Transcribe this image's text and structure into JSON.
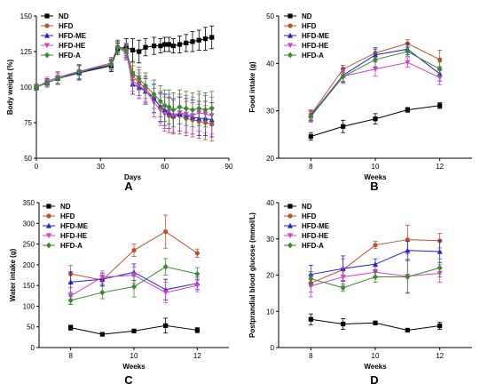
{
  "chart_data": [
    {
      "panel": "A",
      "type": "line",
      "xlabel": "Days",
      "ylabel": "Body weight (%)",
      "xlim": [
        0,
        90
      ],
      "ylim": [
        50,
        150
      ],
      "xticks": [
        0,
        30,
        60,
        90
      ],
      "yticks": [
        50,
        75,
        100,
        125,
        150
      ],
      "legend": "top-left",
      "x": [
        0,
        5,
        10,
        20,
        35,
        38,
        42,
        45,
        48,
        51,
        55,
        58,
        60,
        62,
        64,
        67,
        70,
        73,
        76,
        79,
        82
      ],
      "series": [
        {
          "name": "ND",
          "color": "#000000",
          "marker": "square",
          "values": [
            100,
            103,
            106,
            110,
            115,
            127,
            128,
            126,
            125,
            128,
            129,
            129,
            130,
            130,
            129,
            130,
            131,
            132,
            133,
            134,
            135
          ],
          "errors": [
            2,
            3,
            4,
            5,
            4,
            4,
            6,
            8,
            8,
            6,
            6,
            5,
            5,
            5,
            5,
            6,
            6,
            7,
            7,
            8,
            8
          ]
        },
        {
          "name": "HFD",
          "color": "#c0502c",
          "marker": "circle",
          "values": [
            100,
            103,
            106,
            110,
            116,
            128,
            126,
            108,
            103,
            99,
            92,
            86,
            83,
            80,
            79,
            80,
            78,
            77,
            76,
            75,
            74
          ],
          "errors": [
            2,
            3,
            4,
            5,
            4,
            4,
            5,
            7,
            9,
            9,
            10,
            11,
            12,
            12,
            12,
            13,
            12,
            12,
            12,
            12,
            12
          ]
        },
        {
          "name": "HFD-ME",
          "color": "#2020d0",
          "marker": "triangle-up",
          "values": [
            100,
            103,
            106,
            110,
            116,
            129,
            125,
            102,
            100,
            97,
            92,
            86,
            84,
            82,
            80,
            81,
            80,
            79,
            78,
            78,
            77
          ],
          "errors": [
            2,
            3,
            4,
            5,
            4,
            4,
            5,
            7,
            8,
            9,
            10,
            10,
            11,
            11,
            12,
            12,
            12,
            12,
            12,
            12,
            12
          ]
        },
        {
          "name": "HFD-HE",
          "color": "#d040d0",
          "marker": "triangle-down",
          "values": [
            100,
            104,
            107,
            111,
            117,
            128,
            124,
            104,
            101,
            98,
            89,
            84,
            81,
            83,
            80,
            82,
            81,
            80,
            82,
            81,
            80
          ],
          "errors": [
            2,
            3,
            4,
            5,
            4,
            4,
            5,
            7,
            9,
            9,
            10,
            11,
            12,
            12,
            12,
            13,
            13,
            13,
            13,
            13,
            13
          ]
        },
        {
          "name": "HFD-A",
          "color": "#3a8a2e",
          "marker": "diamond",
          "values": [
            100,
            103,
            106,
            111,
            116,
            128,
            126,
            110,
            106,
            101,
            95,
            90,
            87,
            86,
            84,
            86,
            85,
            84,
            85,
            84,
            85
          ],
          "errors": [
            2,
            3,
            4,
            5,
            4,
            4,
            5,
            7,
            8,
            9,
            10,
            11,
            11,
            12,
            12,
            12,
            12,
            12,
            12,
            12,
            12
          ]
        }
      ]
    },
    {
      "panel": "B",
      "type": "line",
      "xlabel": "Weeks",
      "ylabel": "Food intake (g)",
      "xlim": [
        7,
        13
      ],
      "ylim": [
        20,
        50
      ],
      "xticks": [
        8,
        10,
        12
      ],
      "yticks": [
        20,
        30,
        40,
        50
      ],
      "legend": "top-left",
      "x": [
        8,
        9,
        10,
        11,
        12
      ],
      "series": [
        {
          "name": "ND",
          "color": "#000000",
          "marker": "square",
          "values": [
            24.6,
            26.7,
            28.3,
            30.2,
            31.1
          ],
          "errors": [
            0.8,
            1.3,
            1.1,
            0.5,
            0.6
          ]
        },
        {
          "name": "HFD",
          "color": "#c0502c",
          "marker": "circle",
          "values": [
            29.2,
            38.8,
            42.2,
            44.2,
            40.8
          ],
          "errors": [
            1.0,
            0.8,
            0.8,
            0.8,
            2.0
          ]
        },
        {
          "name": "HFD-ME",
          "color": "#2020d0",
          "marker": "triangle-up",
          "values": [
            29.0,
            37.5,
            41.8,
            43.0,
            37.8
          ],
          "errors": [
            1.0,
            1.5,
            1.5,
            1.2,
            1.5
          ]
        },
        {
          "name": "HFD-HE",
          "color": "#d040d0",
          "marker": "triangle-down",
          "values": [
            28.8,
            37.3,
            38.8,
            40.2,
            37.0
          ],
          "errors": [
            1.2,
            1.5,
            1.5,
            1.0,
            1.5
          ]
        },
        {
          "name": "HFD-A",
          "color": "#3a8a2e",
          "marker": "diamond",
          "values": [
            28.8,
            37.2,
            40.8,
            42.5,
            38.8
          ],
          "errors": [
            1.0,
            1.0,
            1.5,
            1.0,
            1.5
          ]
        }
      ]
    },
    {
      "panel": "C",
      "type": "line",
      "xlabel": "Weeks",
      "ylabel": "Water intake (g)",
      "xlim": [
        7,
        13
      ],
      "ylim": [
        0,
        350
      ],
      "xticks": [
        8,
        10,
        12
      ],
      "yticks": [
        0,
        50,
        100,
        150,
        200,
        250,
        300,
        350
      ],
      "legend": "top-left",
      "x": [
        8,
        9,
        10,
        11,
        12
      ],
      "series": [
        {
          "name": "ND",
          "color": "#000000",
          "marker": "square",
          "values": [
            48,
            32,
            40,
            53,
            42
          ],
          "errors": [
            6,
            3,
            4,
            18,
            6
          ]
        },
        {
          "name": "HFD",
          "color": "#c0502c",
          "marker": "circle",
          "values": [
            178,
            163,
            235,
            280,
            228
          ],
          "errors": [
            20,
            12,
            15,
            40,
            10
          ]
        },
        {
          "name": "HFD-ME",
          "color": "#2020d0",
          "marker": "triangle-up",
          "values": [
            158,
            165,
            182,
            140,
            155
          ],
          "errors": [
            25,
            15,
            20,
            25,
            15
          ]
        },
        {
          "name": "HFD-HE",
          "color": "#d040d0",
          "marker": "triangle-down",
          "values": [
            125,
            170,
            175,
            133,
            150
          ],
          "errors": [
            20,
            15,
            20,
            25,
            15
          ]
        },
        {
          "name": "HFD-A",
          "color": "#3a8a2e",
          "marker": "diamond",
          "values": [
            114,
            133,
            147,
            195,
            178
          ],
          "errors": [
            10,
            15,
            25,
            20,
            15
          ]
        }
      ]
    },
    {
      "panel": "D",
      "type": "line",
      "xlabel": "Weeks",
      "ylabel": "Postprandial blood glucose (mmol/L)",
      "xlim": [
        7,
        13
      ],
      "ylim": [
        0,
        40
      ],
      "xticks": [
        8,
        10,
        12
      ],
      "yticks": [
        0,
        10,
        20,
        30,
        40
      ],
      "legend": "top-left",
      "x": [
        8,
        9,
        10,
        11,
        12
      ],
      "series": [
        {
          "name": "ND",
          "color": "#000000",
          "marker": "square",
          "values": [
            7.8,
            6.5,
            6.8,
            4.8,
            6.0
          ],
          "errors": [
            1.5,
            1.5,
            0.5,
            0.5,
            1.0
          ]
        },
        {
          "name": "HFD",
          "color": "#c0502c",
          "marker": "circle",
          "values": [
            17.8,
            21.5,
            28.3,
            29.8,
            29.5
          ],
          "errors": [
            2.5,
            3.0,
            1.0,
            4.0,
            2.0
          ]
        },
        {
          "name": "HFD-ME",
          "color": "#2020d0",
          "marker": "triangle-up",
          "values": [
            20.2,
            21.8,
            23.0,
            26.8,
            26.5
          ],
          "errors": [
            2.5,
            3.5,
            1.5,
            2.5,
            3.0
          ]
        },
        {
          "name": "HFD-HE",
          "color": "#d040d0",
          "marker": "triangle-down",
          "values": [
            17.0,
            19.5,
            20.8,
            19.7,
            20.5
          ],
          "errors": [
            3.0,
            2.5,
            1.5,
            4.5,
            2.5
          ]
        },
        {
          "name": "HFD-A",
          "color": "#3a8a2e",
          "marker": "diamond",
          "values": [
            19.0,
            16.5,
            19.5,
            19.5,
            22.0
          ],
          "errors": [
            2.0,
            1.0,
            1.5,
            4.5,
            2.5
          ]
        }
      ]
    }
  ]
}
